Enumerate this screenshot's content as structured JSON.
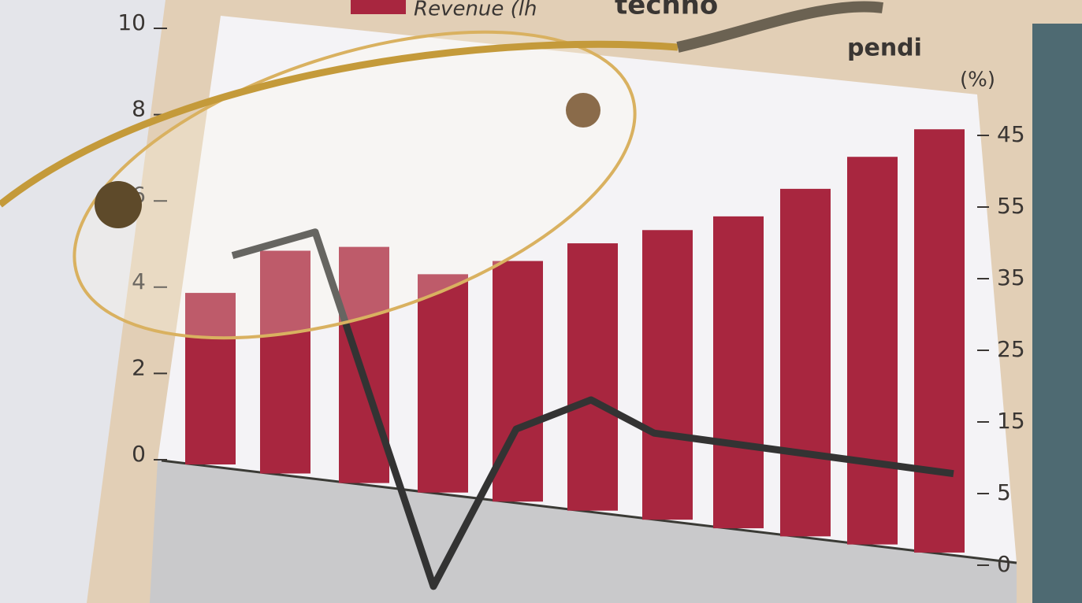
{
  "legend_text": "Revenue (lh",
  "title_fragments": [
    "techno",
    "pendi",
    "(%)"
  ],
  "left_axis_ticks": [
    0,
    2,
    4,
    6,
    8,
    10
  ],
  "right_axis_labels": [
    45,
    55,
    35,
    25,
    15,
    5,
    0
  ],
  "bars": [
    3.85,
    5.0,
    5.3,
    4.9,
    5.4,
    6.0,
    6.5,
    7.0,
    7.8,
    8.7,
    9.5
  ],
  "line": [
    37.9,
    40.8,
    -2.9,
    16.5,
    20.1,
    16.0,
    11.0
  ],
  "bar_color": "#a8263f",
  "line_color": "#333333"
}
